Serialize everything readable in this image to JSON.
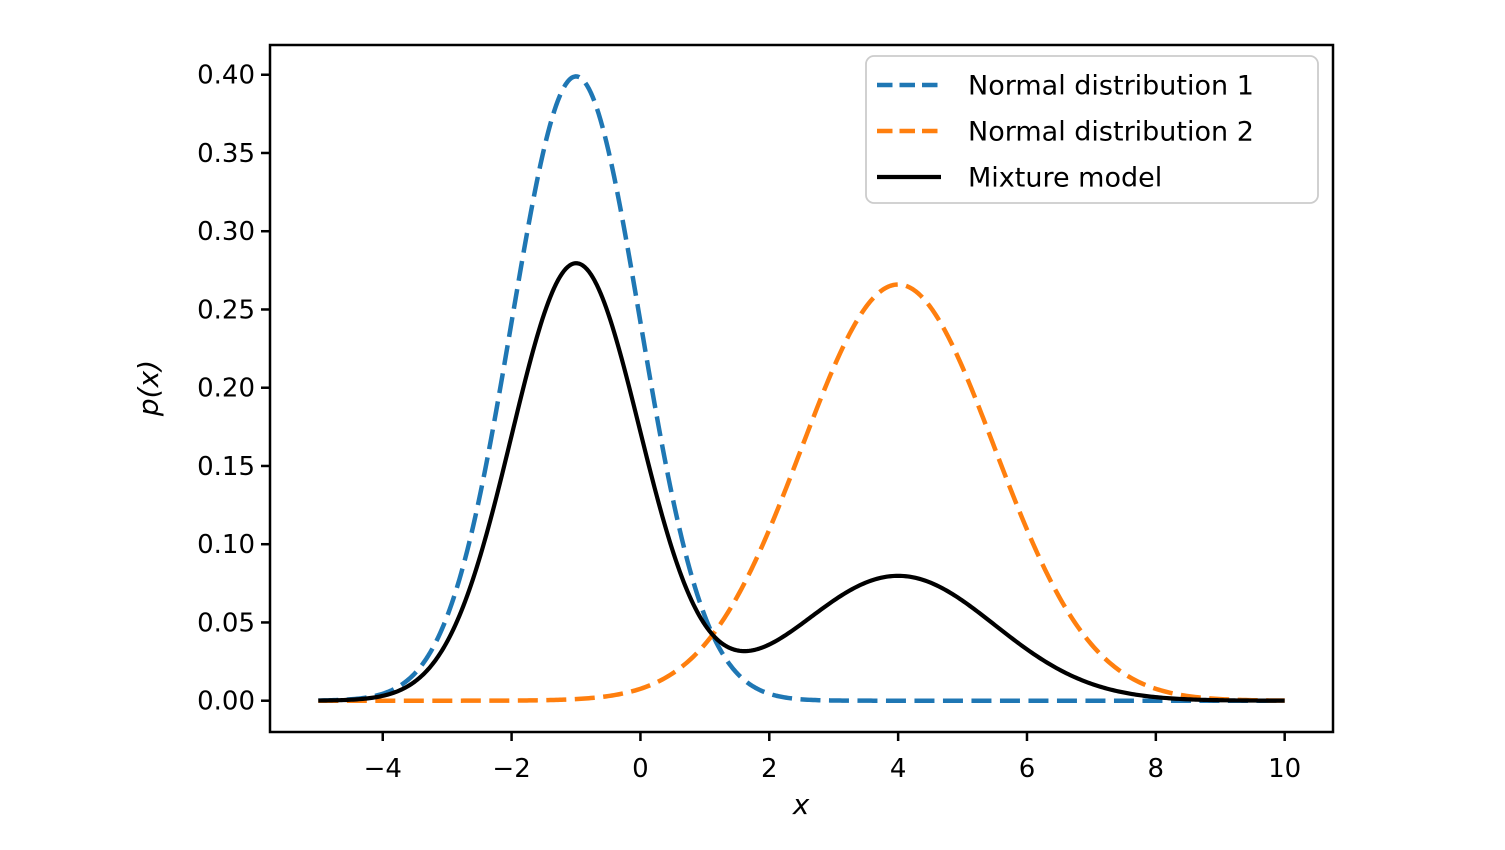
{
  "chart_data": {
    "type": "line",
    "title": "",
    "xlabel": "x",
    "ylabel": "p(x)",
    "xlim": [
      -5.75,
      10.75
    ],
    "ylim": [
      -0.02,
      0.419
    ],
    "x_sample_range": [
      -5,
      10
    ],
    "xticks": [
      -4,
      -2,
      0,
      2,
      4,
      6,
      8,
      10
    ],
    "xtick_labels": [
      "−4",
      "−2",
      "0",
      "2",
      "4",
      "6",
      "8",
      "10"
    ],
    "yticks": [
      0,
      0.05,
      0.1,
      0.15,
      0.2,
      0.25,
      0.3,
      0.35,
      0.4
    ],
    "ytick_labels": [
      "0.00",
      "0.05",
      "0.10",
      "0.15",
      "0.20",
      "0.25",
      "0.30",
      "0.35",
      "0.40"
    ],
    "grid": false,
    "legend": {
      "position": "upper right",
      "frame": true,
      "entries": [
        "Normal distribution 1",
        "Normal distribution 2",
        "Mixture model"
      ]
    },
    "series": [
      {
        "name": "Normal distribution 1",
        "color": "#1f77b4",
        "linestyle": "dashed",
        "components": [
          {
            "weight": 1,
            "mean": -1,
            "std": 1
          }
        ],
        "peak": {
          "x": -1,
          "y": 0.3989
        }
      },
      {
        "name": "Normal distribution 2",
        "color": "#ff7f0e",
        "linestyle": "dashed",
        "components": [
          {
            "weight": 1,
            "mean": 4,
            "std": 1.5
          }
        ],
        "peak": {
          "x": 4,
          "y": 0.266
        }
      },
      {
        "name": "Mixture model",
        "color": "#000000",
        "linestyle": "solid",
        "components": [
          {
            "weight": 0.7,
            "mean": -1,
            "std": 1
          },
          {
            "weight": 0.3,
            "mean": 4,
            "std": 1.5
          }
        ],
        "peak": {
          "x": -1,
          "y": 0.2793
        },
        "secondary_peak": {
          "x": 4,
          "y": 0.0798
        },
        "local_min": {
          "x": 1.6,
          "y": 0.032
        }
      }
    ],
    "samples": {
      "x": [
        -5,
        -4,
        -3,
        -2,
        -1,
        0,
        1,
        2,
        3,
        4,
        5,
        6,
        7,
        8,
        9,
        10
      ],
      "series_values": [
        [
          0.00013,
          0.00443,
          0.05399,
          0.24197,
          0.39894,
          0.24197,
          0.05399,
          0.00443,
          0.00013,
          0.0,
          0.0,
          0.0,
          0.0,
          0.0,
          0.0,
          0.0
        ],
        [
          0.0,
          0.0,
          1e-05,
          9e-05,
          0.00103,
          0.00759,
          0.03599,
          0.10934,
          0.21297,
          0.26596,
          0.21297,
          0.10934,
          0.03599,
          0.00759,
          0.00103,
          9e-05
        ],
        [
          9e-05,
          0.0031,
          0.0378,
          0.16941,
          0.27957,
          0.17166,
          0.04859,
          0.0359,
          0.06399,
          0.0798,
          0.0639,
          0.0328,
          0.0108,
          0.00228,
          0.00031,
          3e-05
        ]
      ]
    },
    "colors": {
      "series1": "#1f77b4",
      "series2": "#ff7f0e",
      "mixture": "#000000",
      "axes": "#000000",
      "legend_border": "#cccccc",
      "background": "#ffffff"
    }
  }
}
